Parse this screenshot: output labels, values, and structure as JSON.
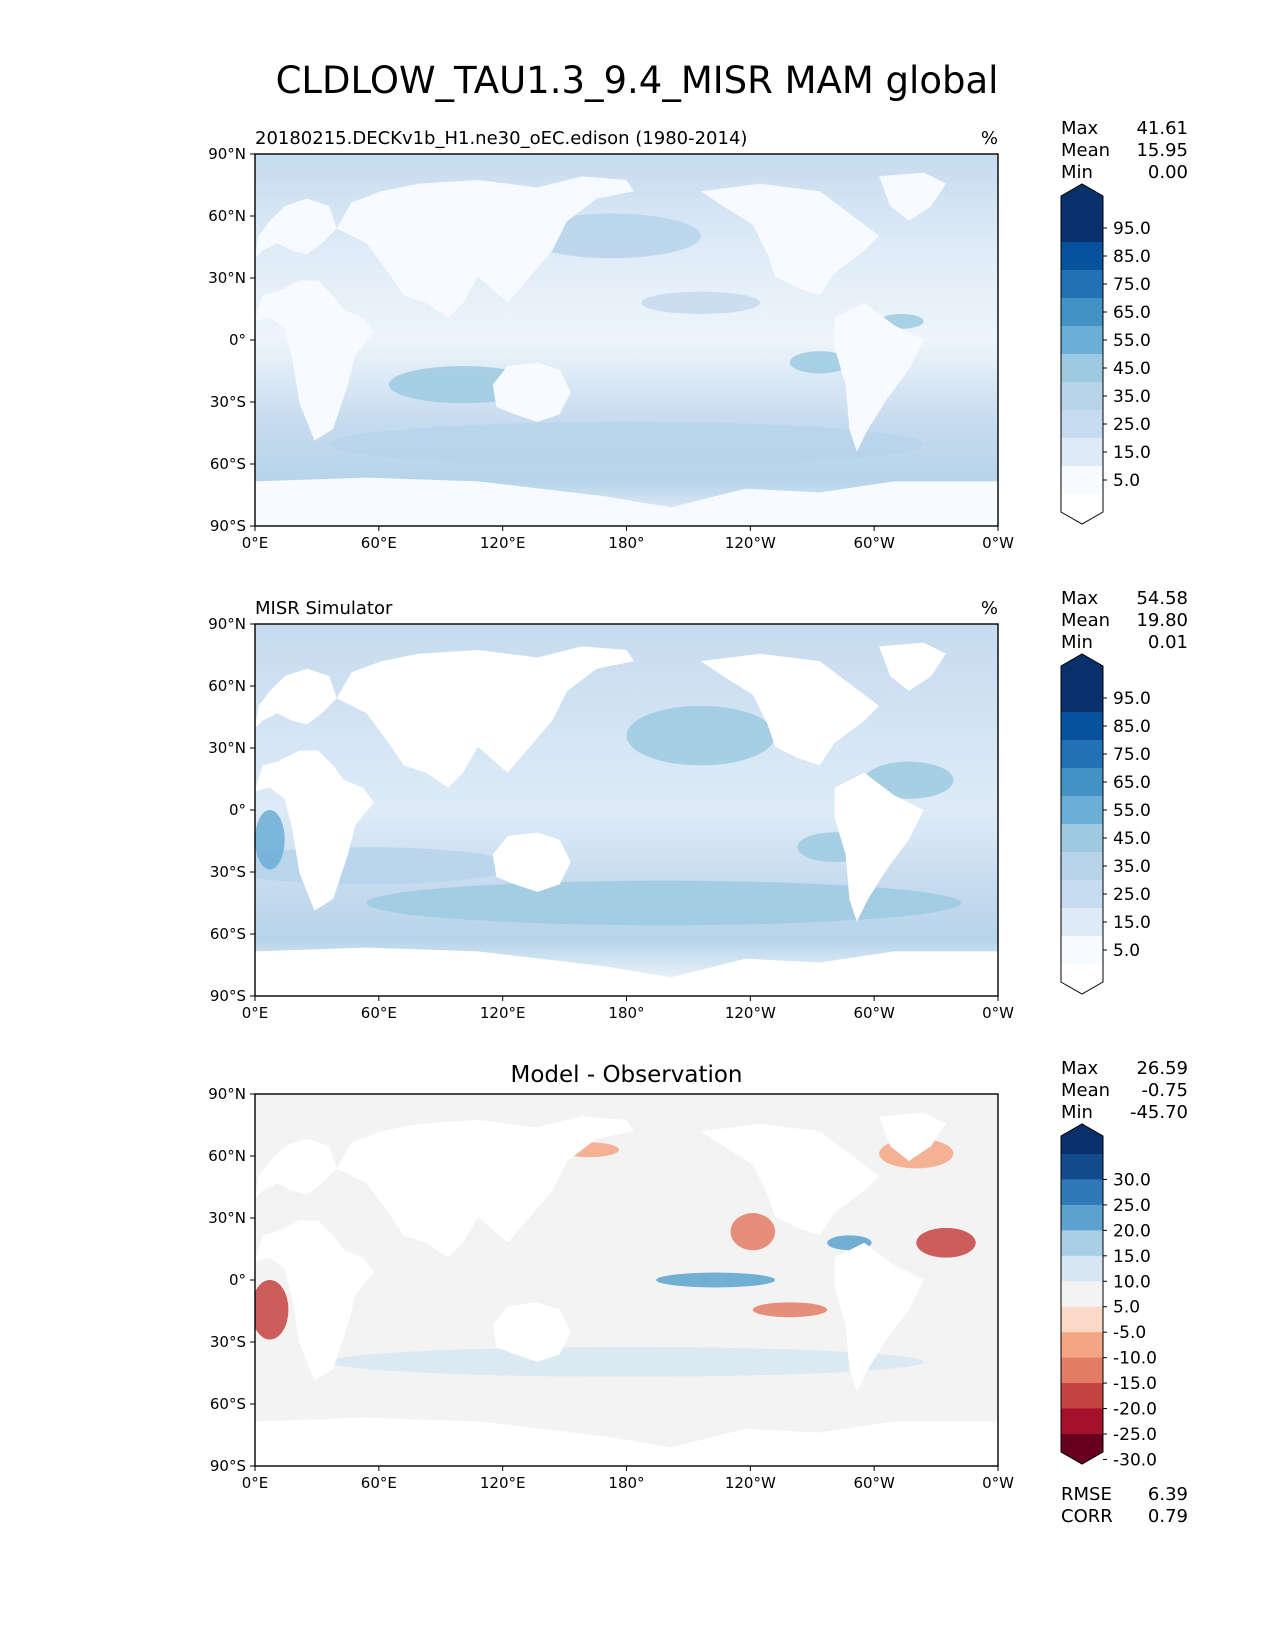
{
  "title": "CLDLOW_TAU1.3_9.4_MISR MAM global",
  "lon_tick_labels": [
    "0°E",
    "60°E",
    "120°E",
    "180°",
    "120°W",
    "60°W",
    "0°W"
  ],
  "lat_tick_labels": [
    "90°N",
    "60°N",
    "30°N",
    "0°",
    "30°S",
    "60°S",
    "90°S"
  ],
  "chart_data": [
    {
      "type": "heatmap",
      "title_left": "20180215.DECKv1b_H1.ne30_oEC.edison (1980-2014)",
      "title_right": "%",
      "title_center": "",
      "stats": {
        "max_label": "Max",
        "max": "41.61",
        "mean_label": "Mean",
        "mean": "15.95",
        "min_label": "Min",
        "min": "0.00"
      },
      "xlim": [
        0,
        360
      ],
      "ylim": [
        -90,
        90
      ],
      "colorbar": {
        "labels": [
          "95.0",
          "85.0",
          "75.0",
          "65.0",
          "55.0",
          "45.0",
          "35.0",
          "25.0",
          "15.0",
          "5.0"
        ],
        "colors": [
          "#08306b",
          "#08519c",
          "#2171b5",
          "#4292c6",
          "#6baed6",
          "#9ecae1",
          "#b7d4ea",
          "#c6dbef",
          "#deebf7",
          "#f7fbff"
        ],
        "extend_top": "#08306b",
        "extend_bottom": "#ffffff"
      },
      "metrics": []
    },
    {
      "type": "heatmap",
      "title_left": "MISR Simulator",
      "title_right": "%",
      "title_center": "",
      "stats": {
        "max_label": "Max",
        "max": "54.58",
        "mean_label": "Mean",
        "mean": "19.80",
        "min_label": "Min",
        "min": "0.01"
      },
      "xlim": [
        0,
        360
      ],
      "ylim": [
        -90,
        90
      ],
      "colorbar": {
        "labels": [
          "95.0",
          "85.0",
          "75.0",
          "65.0",
          "55.0",
          "45.0",
          "35.0",
          "25.0",
          "15.0",
          "5.0"
        ],
        "colors": [
          "#08306b",
          "#08519c",
          "#2171b5",
          "#4292c6",
          "#6baed6",
          "#9ecae1",
          "#b7d4ea",
          "#c6dbef",
          "#deebf7",
          "#f7fbff"
        ],
        "extend_top": "#08306b",
        "extend_bottom": "#ffffff"
      },
      "metrics": []
    },
    {
      "type": "heatmap",
      "title_left": "",
      "title_right": "",
      "title_center": "Model - Observation",
      "stats": {
        "max_label": "Max",
        "max": "26.59",
        "mean_label": "Mean",
        "mean": "-0.75",
        "min_label": "Min",
        "min": "-45.70"
      },
      "xlim": [
        0,
        360
      ],
      "ylim": [
        -90,
        90
      ],
      "colorbar": {
        "labels": [
          "30.0",
          "25.0",
          "20.0",
          "15.0",
          "10.0",
          "5.0",
          "-5.0",
          "-10.0",
          "-15.0",
          "-20.0",
          "-25.0",
          "-30.0"
        ],
        "colors": [
          "#114b8c",
          "#2f79b8",
          "#5ba2cf",
          "#a9cfe5",
          "#d6e7f1",
          "#f3f3f3",
          "#fbd8c8",
          "#f4a582",
          "#e27c64",
          "#c44240",
          "#a5102a"
        ],
        "extend_top": "#08306b",
        "extend_bottom": "#67001f"
      },
      "metrics": [
        {
          "label": "RMSE",
          "value": "6.39"
        },
        {
          "label": "CORR",
          "value": "0.79"
        }
      ]
    }
  ]
}
